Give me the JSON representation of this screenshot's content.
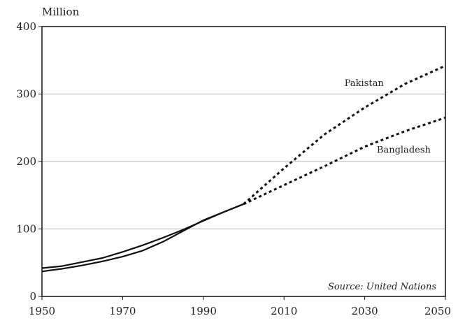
{
  "chart_data": {
    "type": "line",
    "unit_label": "Million",
    "source": "Source: United Nations",
    "xlim": [
      1950,
      2050
    ],
    "ylim": [
      0,
      400
    ],
    "x_ticks": [
      1950,
      1970,
      1990,
      2010,
      2030,
      2050
    ],
    "y_ticks": [
      0,
      100,
      200,
      300,
      400
    ],
    "grid_y": [
      100,
      200,
      300
    ],
    "series": [
      {
        "name": "Pakistan",
        "color": "#111111",
        "actual": {
          "x": [
            1950,
            1955,
            1960,
            1965,
            1970,
            1975,
            1980,
            1985,
            1990,
            1995,
            2000
          ],
          "y": [
            37,
            41,
            46,
            52,
            59,
            68,
            81,
            97,
            113,
            125,
            137
          ]
        },
        "projected": {
          "x": [
            2000,
            2010,
            2020,
            2030,
            2040,
            2050
          ],
          "y": [
            137,
            190,
            240,
            280,
            315,
            342
          ]
        }
      },
      {
        "name": "Bangladesh",
        "color": "#111111",
        "actual": {
          "x": [
            1950,
            1955,
            1960,
            1965,
            1970,
            1975,
            1980,
            1985,
            1990,
            1995,
            2000
          ],
          "y": [
            42,
            45,
            51,
            57,
            66,
            76,
            87,
            99,
            112,
            125,
            137
          ]
        },
        "projected": {
          "x": [
            2000,
            2010,
            2020,
            2030,
            2040,
            2050
          ],
          "y": [
            137,
            165,
            193,
            222,
            245,
            265
          ]
        }
      }
    ]
  }
}
